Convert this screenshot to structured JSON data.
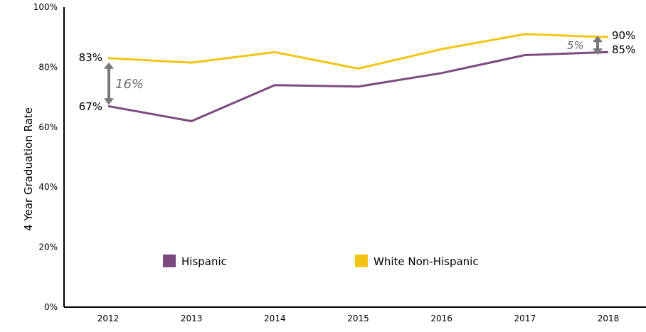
{
  "chart_data": {
    "type": "line",
    "ylabel": "4 Year Graduation Rate",
    "ylim": [
      0,
      100
    ],
    "yticks": [
      "0%",
      "20%",
      "40%",
      "60%",
      "80%",
      "100%"
    ],
    "categories": [
      "2012",
      "2013",
      "2014",
      "2015",
      "2016",
      "2017",
      "2018"
    ],
    "series": [
      {
        "name": "Hispanic",
        "color": "#7d4a7f",
        "values": [
          67,
          62,
          74,
          73.5,
          78,
          84,
          85
        ]
      },
      {
        "name": "White Non-Hispanic",
        "color": "#f2c414",
        "values": [
          83,
          81.5,
          85,
          79.5,
          86,
          91,
          90
        ]
      }
    ],
    "data_labels": {
      "hispanic_start": "67%",
      "white_start": "83%",
      "white_end": "90%",
      "hispanic_end": "85%"
    },
    "annotations": {
      "gap_start": "16%",
      "gap_end": "5%"
    },
    "legend_position": "bottom-center"
  }
}
